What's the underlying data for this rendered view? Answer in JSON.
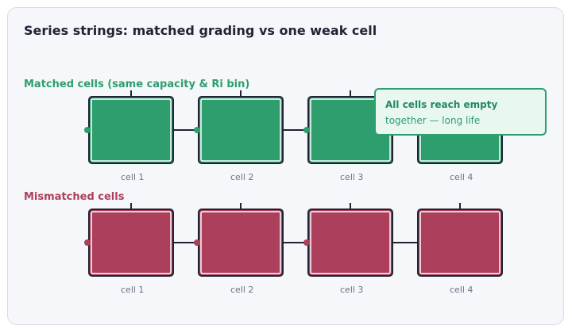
{
  "title": "Series strings: matched grading vs one weak cell",
  "colors": {
    "matched": "#2e9e6e",
    "mismatched": "#ac405c",
    "outline": "#1e2433",
    "cell_label": "#6b7280"
  },
  "rows": [
    {
      "label": "Matched cells (same capacity & Ri bin)",
      "variant": "matched",
      "cells": [
        "cell 1",
        "cell 2",
        "cell 3",
        "cell 4"
      ]
    },
    {
      "label": "Mismatched cells",
      "variant": "mismatched",
      "cells": [
        "cell 1",
        "cell 2",
        "cell 3",
        "cell 4"
      ]
    }
  ],
  "callout": {
    "title": "All cells reach empty",
    "body": "together — long life"
  }
}
